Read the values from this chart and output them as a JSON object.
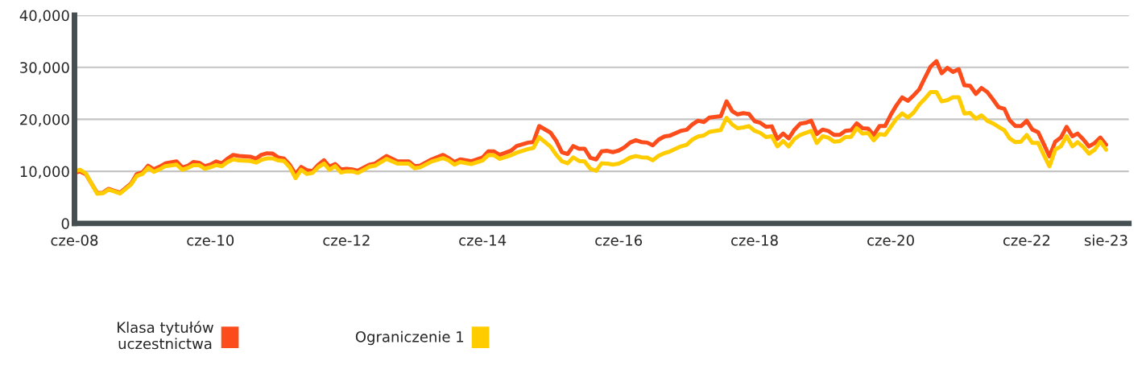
{
  "chart_data": {
    "type": "line",
    "x": [
      "2008-06",
      "2008-07",
      "2008-08",
      "2008-10",
      "2008-11",
      "2008-12",
      "2009-01",
      "2009-02",
      "2009-04",
      "2009-05",
      "2009-06",
      "2009-07",
      "2009-08",
      "2009-09",
      "2009-10",
      "2009-12",
      "2010-01",
      "2010-02",
      "2010-03",
      "2010-04",
      "2010-05",
      "2010-06",
      "2010-07",
      "2010-08",
      "2010-09",
      "2010-10",
      "2010-11",
      "2011-01",
      "2011-02",
      "2011-03",
      "2011-04",
      "2011-05",
      "2011-06",
      "2011-07",
      "2011-08",
      "2011-09",
      "2011-10",
      "2011-11",
      "2011-12",
      "2012-01",
      "2012-02",
      "2012-03",
      "2012-04",
      "2012-05",
      "2012-06",
      "2012-07",
      "2012-08",
      "2012-10",
      "2012-11",
      "2013-01",
      "2013-03",
      "2013-05",
      "2013-06",
      "2013-07",
      "2013-09",
      "2013-11",
      "2013-12",
      "2014-01",
      "2014-02",
      "2014-04",
      "2014-06",
      "2014-07",
      "2014-08",
      "2014-09",
      "2014-11",
      "2014-12",
      "2015-02",
      "2015-03",
      "2015-04",
      "2015-06",
      "2015-07",
      "2015-08",
      "2015-09",
      "2015-10",
      "2015-11",
      "2015-12",
      "2016-01",
      "2016-02",
      "2016-03",
      "2016-04",
      "2016-05",
      "2016-06",
      "2016-07",
      "2016-08",
      "2016-09",
      "2016-10",
      "2016-11",
      "2016-12",
      "2017-01",
      "2017-02",
      "2017-03",
      "2017-05",
      "2017-06",
      "2017-07",
      "2017-08",
      "2017-09",
      "2017-10",
      "2017-12",
      "2018-01",
      "2018-02",
      "2018-03",
      "2018-04",
      "2018-05",
      "2018-06",
      "2018-07",
      "2018-08",
      "2018-09",
      "2018-10",
      "2018-11",
      "2018-12",
      "2019-01",
      "2019-02",
      "2019-03",
      "2019-04",
      "2019-05",
      "2019-06",
      "2019-07",
      "2019-08",
      "2019-09",
      "2019-10",
      "2019-11",
      "2019-12",
      "2020-01",
      "2020-02",
      "2020-03",
      "2020-04",
      "2020-05",
      "2020-06",
      "2020-07",
      "2020-08",
      "2020-09",
      "2020-10",
      "2020-11",
      "2020-12",
      "2021-01",
      "2021-02",
      "2021-03",
      "2021-04",
      "2021-05",
      "2021-06",
      "2021-07",
      "2021-08",
      "2021-09",
      "2021-10",
      "2021-11",
      "2021-12",
      "2022-01",
      "2022-02",
      "2022-03",
      "2022-04",
      "2022-05",
      "2022-06",
      "2022-07",
      "2022-08",
      "2022-09",
      "2022-10",
      "2022-11",
      "2022-12",
      "2023-01",
      "2023-02",
      "2023-03",
      "2023-04",
      "2023-05",
      "2023-06",
      "2023-07",
      "2023-08"
    ],
    "series": [
      {
        "name": "Klasa tytułów\nuczestnictwa",
        "color": "#fc4c1b",
        "values": [
          9700,
          10000,
          9450,
          5860,
          5900,
          6640,
          6270,
          5900,
          7660,
          9460,
          9830,
          11100,
          10390,
          10900,
          11520,
          11930,
          10750,
          11100,
          11800,
          11650,
          11000,
          11300,
          11900,
          11550,
          12450,
          13170,
          12960,
          12810,
          12450,
          13170,
          13480,
          13430,
          12650,
          12450,
          11270,
          9460,
          10850,
          10230,
          10080,
          11270,
          12140,
          10900,
          11400,
          10390,
          10490,
          10390,
          10130,
          11270,
          11500,
          12960,
          11930,
          11930,
          11000,
          11100,
          12300,
          13170,
          12550,
          11800,
          12300,
          11950,
          12660,
          13840,
          13840,
          13170,
          13980,
          14870,
          15530,
          15640,
          18720,
          17440,
          15900,
          13690,
          13340,
          14870,
          14350,
          14350,
          12600,
          12300,
          13840,
          13950,
          13690,
          14000,
          14600,
          15530,
          16000,
          15640,
          15530,
          15000,
          16100,
          16700,
          16850,
          17800,
          18000,
          19000,
          19750,
          19500,
          20350,
          20600,
          23460,
          21560,
          20950,
          21200,
          21050,
          19650,
          19350,
          18560,
          18660,
          16240,
          17270,
          16340,
          18040,
          19180,
          19330,
          19740,
          17170,
          18040,
          17780,
          17010,
          17010,
          17780,
          17890,
          19230,
          18300,
          18200,
          17010,
          18710,
          18710,
          20880,
          22680,
          24230,
          23560,
          24590,
          25770,
          27990,
          30160,
          31190,
          28870,
          29900,
          29130,
          29640,
          26550,
          26450,
          24900,
          26030,
          25260,
          23870,
          22320,
          22010,
          19850,
          18710,
          18710,
          19740,
          18040,
          17530,
          15210,
          12890,
          15720,
          16500,
          18560,
          16750,
          17270,
          16130,
          14800,
          15460,
          16500,
          15100
        ]
      },
      {
        "name": "Ograniczenie 1",
        "color": "#ffcc00",
        "values": [
          10000,
          10300,
          9600,
          5700,
          5800,
          6500,
          6150,
          5750,
          7500,
          9100,
          9500,
          10700,
          9900,
          10400,
          11000,
          11300,
          10300,
          10700,
          11200,
          11200,
          10500,
          10800,
          11200,
          11000,
          11800,
          12300,
          12100,
          12000,
          11700,
          12200,
          12500,
          12500,
          12100,
          12000,
          10800,
          8690,
          10300,
          9500,
          9700,
          10800,
          11500,
          10300,
          11000,
          9800,
          10000,
          10000,
          9700,
          10900,
          11100,
          12400,
          11500,
          11500,
          10600,
          10780,
          11900,
          12550,
          12100,
          11300,
          11800,
          11400,
          12100,
          13100,
          13100,
          12400,
          13100,
          13600,
          14300,
          14500,
          16560,
          14760,
          13200,
          11960,
          11550,
          12690,
          12000,
          11900,
          10500,
          10100,
          11550,
          11500,
          11300,
          11500,
          12000,
          12650,
          12950,
          12700,
          12650,
          12130,
          13000,
          13500,
          13800,
          14800,
          15100,
          16100,
          16700,
          16900,
          17600,
          17950,
          20300,
          18990,
          18300,
          18450,
          18700,
          17800,
          17400,
          16600,
          16750,
          14800,
          15830,
          14800,
          16240,
          17010,
          17370,
          17780,
          15460,
          16750,
          16500,
          15720,
          15830,
          16600,
          16650,
          18300,
          17270,
          17370,
          15980,
          17170,
          17010,
          18560,
          20100,
          21130,
          20360,
          21290,
          22840,
          23970,
          25260,
          25260,
          23450,
          23710,
          24230,
          24230,
          21130,
          21240,
          20100,
          20770,
          19740,
          19230,
          18560,
          17890,
          16340,
          15620,
          15720,
          17010,
          15460,
          15460,
          13140,
          10980,
          14180,
          14800,
          16750,
          14800,
          15620,
          14690,
          13400,
          14180,
          15720,
          14180
        ]
      }
    ],
    "xlim": [
      "2008-06",
      "2023-12"
    ],
    "xticks": [
      {
        "value": "2008-06",
        "label": "cze-08"
      },
      {
        "value": "2010-06",
        "label": "cze-10"
      },
      {
        "value": "2012-06",
        "label": "cze-12"
      },
      {
        "value": "2014-06",
        "label": "cze-14"
      },
      {
        "value": "2016-06",
        "label": "cze-16"
      },
      {
        "value": "2018-06",
        "label": "cze-18"
      },
      {
        "value": "2020-06",
        "label": "cze-20"
      },
      {
        "value": "2022-06",
        "label": "cze-22"
      },
      {
        "value": "2023-08",
        "label": "sie-23"
      }
    ],
    "ylim": [
      0,
      40000
    ],
    "yticks": [
      0,
      {
        "value": 10000,
        "label": "10,000"
      },
      {
        "value": 20000,
        "label": "20,000"
      },
      {
        "value": 30000,
        "label": "30,000"
      },
      {
        "value": 40000,
        "label": "40,000"
      }
    ],
    "grid": "y",
    "legend": "bottom",
    "marker": "none",
    "line_style": "solid"
  }
}
